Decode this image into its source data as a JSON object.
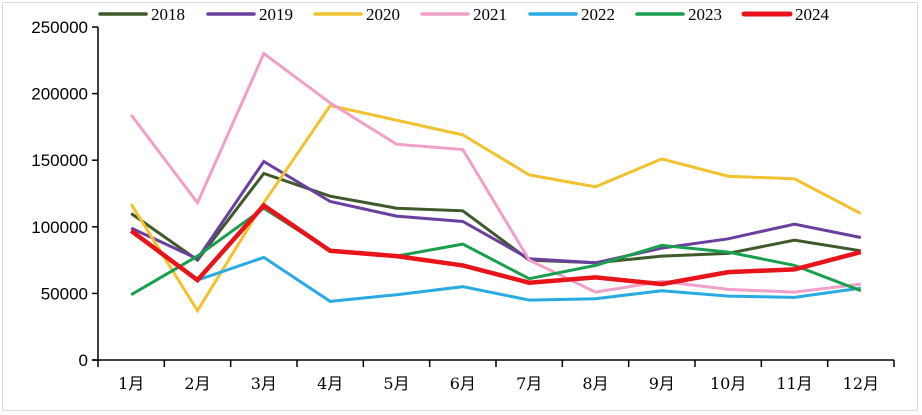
{
  "chart_data": {
    "type": "line",
    "title": "",
    "xlabel": "",
    "ylabel": "",
    "ylim": [
      0,
      250000
    ],
    "yticks": [
      0,
      50000,
      100000,
      150000,
      200000,
      250000
    ],
    "ytick_labels": [
      "0",
      "50000",
      "100000",
      "150000",
      "200000",
      "250000"
    ],
    "grid": false,
    "legend_position": "top",
    "categories": [
      "1月",
      "2月",
      "3月",
      "4月",
      "5月",
      "6月",
      "7月",
      "8月",
      "9月",
      "10月",
      "11月",
      "12月"
    ],
    "series": [
      {
        "name": "2018",
        "color": "#3f5a2a",
        "values": [
          110000,
          75000,
          140000,
          123000,
          114000,
          112000,
          75000,
          73000,
          78000,
          80000,
          90000,
          82000
        ]
      },
      {
        "name": "2019",
        "color": "#6b3fa0",
        "values": [
          99000,
          76000,
          149000,
          119000,
          108000,
          104000,
          76000,
          73000,
          84000,
          91000,
          102000,
          92000
        ]
      },
      {
        "name": "2020",
        "color": "#f2c12e",
        "values": [
          117000,
          37000,
          118000,
          191000,
          180000,
          169000,
          139000,
          130000,
          151000,
          138000,
          136000,
          110000
        ]
      },
      {
        "name": "2021",
        "color": "#f0a0c8",
        "values": [
          184000,
          118000,
          230000,
          193000,
          162000,
          158000,
          75000,
          51000,
          59000,
          53000,
          51000,
          57000
        ]
      },
      {
        "name": "2022",
        "color": "#29abe2",
        "values": [
          null,
          60000,
          77000,
          44000,
          49000,
          55000,
          45000,
          46000,
          52000,
          48000,
          47000,
          54000
        ]
      },
      {
        "name": "2023",
        "color": "#1a9e50",
        "values": [
          49000,
          78000,
          114000,
          82000,
          78000,
          87000,
          61000,
          71000,
          86000,
          81000,
          71000,
          52000
        ]
      },
      {
        "name": "2024",
        "color": "#e8141a",
        "values": [
          97000,
          60000,
          116000,
          82000,
          78000,
          71000,
          58000,
          62000,
          57000,
          66000,
          68000,
          81000
        ]
      }
    ]
  }
}
